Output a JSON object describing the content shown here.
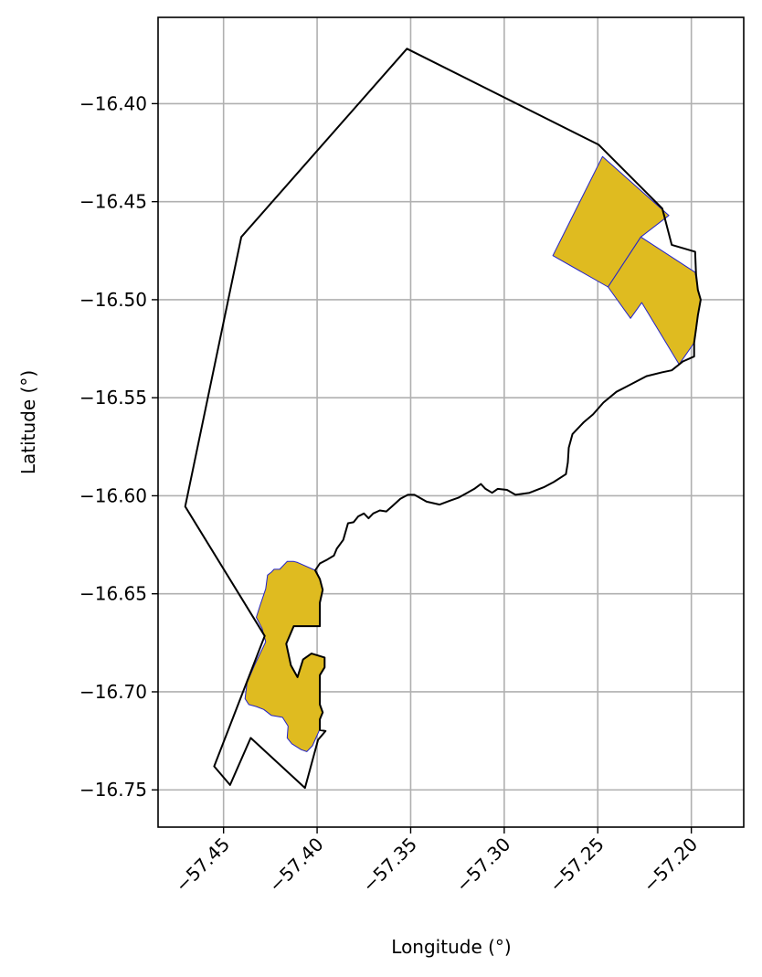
{
  "chart_data": {
    "type": "map",
    "xlabel": "Longitude (°)",
    "ylabel": "Latitude (°)",
    "xlim": [
      -57.485,
      -57.172
    ],
    "ylim": [
      -16.769,
      -16.356
    ],
    "grid": true,
    "x_ticks": [
      {
        "value": -57.45,
        "label": "−57.45"
      },
      {
        "value": -57.4,
        "label": "−57.40"
      },
      {
        "value": -57.35,
        "label": "−57.35"
      },
      {
        "value": -57.3,
        "label": "−57.30"
      },
      {
        "value": -57.25,
        "label": "−57.25"
      },
      {
        "value": -57.2,
        "label": "−57.20"
      }
    ],
    "y_ticks": [
      {
        "value": -16.4,
        "label": "−16.40"
      },
      {
        "value": -16.45,
        "label": "−16.45"
      },
      {
        "value": -16.5,
        "label": "−16.50"
      },
      {
        "value": -16.55,
        "label": "−16.55"
      },
      {
        "value": -16.6,
        "label": "−16.60"
      },
      {
        "value": -16.65,
        "label": "−16.65"
      },
      {
        "value": -16.7,
        "label": "−16.70"
      },
      {
        "value": -16.75,
        "label": "−16.75"
      }
    ],
    "colors": {
      "boundary": "#000000",
      "area_fill": "#dfbb20",
      "area_edge": "#2222cc",
      "grid": "#b0b0b0"
    },
    "boundary": [
      [
        -57.352,
        -16.372
      ],
      [
        -57.2495,
        -16.421
      ],
      [
        -57.2155,
        -16.4535
      ],
      [
        -57.2105,
        -16.472
      ],
      [
        -57.198,
        -16.4755
      ],
      [
        -57.1975,
        -16.487
      ],
      [
        -57.1965,
        -16.495
      ],
      [
        -57.195,
        -16.5
      ],
      [
        -57.1965,
        -16.508
      ],
      [
        -57.1975,
        -16.515
      ],
      [
        -57.1985,
        -16.522
      ],
      [
        -57.1985,
        -16.529
      ],
      [
        -57.2045,
        -16.5315
      ],
      [
        -57.2105,
        -16.536
      ],
      [
        -57.2155,
        -16.537
      ],
      [
        -57.224,
        -16.539
      ],
      [
        -57.235,
        -16.5445
      ],
      [
        -57.24,
        -16.547
      ],
      [
        -57.247,
        -16.5525
      ],
      [
        -57.2525,
        -16.5585
      ],
      [
        -57.2575,
        -16.5625
      ],
      [
        -57.2635,
        -16.5685
      ],
      [
        -57.2655,
        -16.5755
      ],
      [
        -57.266,
        -16.583
      ],
      [
        -57.267,
        -16.589
      ],
      [
        -57.2735,
        -16.593
      ],
      [
        -57.2785,
        -16.5955
      ],
      [
        -57.2865,
        -16.5985
      ],
      [
        -57.294,
        -16.5995
      ],
      [
        -57.2985,
        -16.597
      ],
      [
        -57.3035,
        -16.5965
      ],
      [
        -57.3065,
        -16.5985
      ],
      [
        -57.31,
        -16.5965
      ],
      [
        -57.3125,
        -16.594
      ],
      [
        -57.316,
        -16.5965
      ],
      [
        -57.3245,
        -16.601
      ],
      [
        -57.329,
        -16.6025
      ],
      [
        -57.3345,
        -16.6045
      ],
      [
        -57.3415,
        -16.603
      ],
      [
        -57.348,
        -16.5995
      ],
      [
        -57.3515,
        -16.5995
      ],
      [
        -57.3555,
        -16.6015
      ],
      [
        -57.3595,
        -16.605
      ],
      [
        -57.363,
        -16.608
      ],
      [
        -57.3665,
        -16.6075
      ],
      [
        -57.37,
        -16.609
      ],
      [
        -57.3725,
        -16.6115
      ],
      [
        -57.375,
        -16.609
      ],
      [
        -57.378,
        -16.6105
      ],
      [
        -57.3805,
        -16.6135
      ],
      [
        -57.3835,
        -16.614
      ],
      [
        -57.386,
        -16.6225
      ],
      [
        -57.3895,
        -16.627
      ],
      [
        -57.391,
        -16.6305
      ],
      [
        -57.3945,
        -16.6325
      ],
      [
        -57.3985,
        -16.6345
      ],
      [
        -57.401,
        -16.638
      ],
      [
        -57.3985,
        -16.6425
      ],
      [
        -57.397,
        -16.648
      ],
      [
        -57.3985,
        -16.6545
      ],
      [
        -57.3985,
        -16.6665
      ],
      [
        -57.4125,
        -16.6665
      ],
      [
        -57.4165,
        -16.6755
      ],
      [
        -57.414,
        -16.6865
      ],
      [
        -57.4105,
        -16.6925
      ],
      [
        -57.4075,
        -16.6835
      ],
      [
        -57.403,
        -16.6805
      ],
      [
        -57.396,
        -16.6825
      ],
      [
        -57.396,
        -16.6875
      ],
      [
        -57.3985,
        -16.6915
      ],
      [
        -57.3985,
        -16.6995
      ],
      [
        -57.3985,
        -16.7065
      ],
      [
        -57.397,
        -16.7105
      ],
      [
        -57.3985,
        -16.714
      ],
      [
        -57.3985,
        -16.7195
      ],
      [
        -57.3955,
        -16.72
      ],
      [
        -57.3995,
        -16.7245
      ],
      [
        -57.4065,
        -16.749
      ],
      [
        -57.4355,
        -16.7235
      ],
      [
        -57.4465,
        -16.7475
      ],
      [
        -57.455,
        -16.738
      ],
      [
        -57.428,
        -16.6715
      ],
      [
        -57.4705,
        -16.6055
      ],
      [
        -57.4405,
        -16.468
      ]
    ],
    "areas": [
      {
        "polygon": [
          [
            -57.2475,
            -16.427
          ],
          [
            -57.212,
            -16.457
          ],
          [
            -57.227,
            -16.468
          ],
          [
            -57.2445,
            -16.4935
          ],
          [
            -57.274,
            -16.4775
          ]
        ]
      },
      {
        "polygon": [
          [
            -57.227,
            -16.468
          ],
          [
            -57.198,
            -16.486
          ],
          [
            -57.1965,
            -16.495
          ],
          [
            -57.195,
            -16.5
          ],
          [
            -57.1965,
            -16.508
          ],
          [
            -57.1975,
            -16.515
          ],
          [
            -57.1985,
            -16.522
          ],
          [
            -57.2065,
            -16.533
          ],
          [
            -57.2265,
            -16.5015
          ],
          [
            -57.2325,
            -16.5095
          ],
          [
            -57.2445,
            -16.4935
          ]
        ]
      },
      {
        "polygon": [
          [
            -57.4105,
            -16.634
          ],
          [
            -57.4125,
            -16.6335
          ],
          [
            -57.416,
            -16.6335
          ],
          [
            -57.42,
            -16.6375
          ],
          [
            -57.423,
            -16.6375
          ],
          [
            -57.4245,
            -16.639
          ],
          [
            -57.4265,
            -16.6405
          ],
          [
            -57.4275,
            -16.6475
          ],
          [
            -57.4305,
            -16.656
          ],
          [
            -57.4325,
            -16.662
          ],
          [
            -57.4295,
            -16.6675
          ],
          [
            -57.4275,
            -16.6745
          ],
          [
            -57.4335,
            -16.6865
          ],
          [
            -57.4375,
            -16.6955
          ],
          [
            -57.4385,
            -16.7035
          ],
          [
            -57.4365,
            -16.7065
          ],
          [
            -57.4325,
            -16.7075
          ],
          [
            -57.4285,
            -16.709
          ],
          [
            -57.4245,
            -16.712
          ],
          [
            -57.4185,
            -16.713
          ],
          [
            -57.4155,
            -16.7175
          ],
          [
            -57.416,
            -16.7235
          ],
          [
            -57.4135,
            -16.7265
          ],
          [
            -57.4085,
            -16.7295
          ],
          [
            -57.4055,
            -16.7305
          ],
          [
            -57.4025,
            -16.7275
          ],
          [
            -57.3985,
            -16.719
          ],
          [
            -57.3985,
            -16.714
          ],
          [
            -57.397,
            -16.7105
          ],
          [
            -57.3985,
            -16.7065
          ],
          [
            -57.3985,
            -16.6995
          ],
          [
            -57.3985,
            -16.6915
          ],
          [
            -57.396,
            -16.6875
          ],
          [
            -57.396,
            -16.6825
          ],
          [
            -57.403,
            -16.6805
          ],
          [
            -57.4075,
            -16.6835
          ],
          [
            -57.4105,
            -16.6925
          ],
          [
            -57.414,
            -16.6865
          ],
          [
            -57.4165,
            -16.6755
          ],
          [
            -57.4125,
            -16.6665
          ],
          [
            -57.3985,
            -16.6665
          ],
          [
            -57.3985,
            -16.6545
          ],
          [
            -57.397,
            -16.648
          ],
          [
            -57.3985,
            -16.6425
          ],
          [
            -57.401,
            -16.638
          ]
        ]
      }
    ]
  }
}
